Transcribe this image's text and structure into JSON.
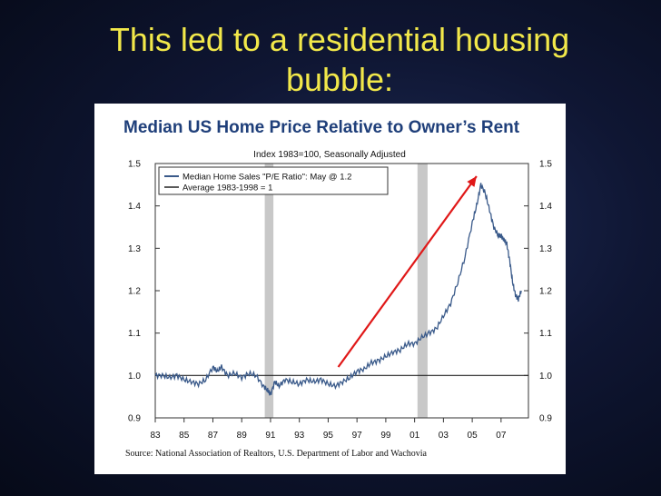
{
  "slide": {
    "title_line1": "This led to a residential housing",
    "title_line2": "bubble:"
  },
  "colors": {
    "title": "#f2e84a",
    "chart_title": "#1f3f7a",
    "series": "#3a5a8a",
    "average": "#222222",
    "recession_band": "#c8c8c8",
    "arrow": "#e01818"
  },
  "chart_data": {
    "type": "line",
    "title": "Median US Home Price Relative to Owner’s Rent",
    "subtitle": "Index 1983=100, Seasonally Adjusted",
    "source": "Source:   National Association of Realtors, U.S. Department of Labor and Wachovia",
    "xlim": [
      1983,
      2008.9
    ],
    "ylim": [
      0.9,
      1.5
    ],
    "x_tick_labels": [
      "83",
      "85",
      "87",
      "89",
      "91",
      "93",
      "95",
      "97",
      "99",
      "01",
      "03",
      "05",
      "07"
    ],
    "x_tick_years": [
      1983,
      1985,
      1987,
      1989,
      1991,
      1993,
      1995,
      1997,
      1999,
      2001,
      2003,
      2005,
      2007
    ],
    "y_ticks": [
      0.9,
      1.0,
      1.1,
      1.2,
      1.3,
      1.4,
      1.5
    ],
    "y_tick_labels": [
      "0.9",
      "1.0",
      "1.1",
      "1.2",
      "1.3",
      "1.4",
      "1.5"
    ],
    "recessions": [
      [
        1990.6,
        1991.2
      ],
      [
        2001.2,
        2001.9
      ]
    ],
    "arrow": {
      "from": [
        1995.7,
        1.02
      ],
      "to": [
        2005.3,
        1.47
      ]
    },
    "legend": {
      "position": "top-left",
      "entries": [
        "Median Home Sales \"P/E Ratio\": May @ 1.2",
        "Average 1983-1998 = 1"
      ]
    },
    "series": [
      {
        "name": "Median Home Sales \"P/E Ratio\": May @ 1.2",
        "x": [
          1983.0,
          1983.5,
          1984.0,
          1984.5,
          1985.0,
          1985.5,
          1986.0,
          1986.5,
          1987.0,
          1987.3,
          1987.6,
          1988.0,
          1988.5,
          1989.0,
          1989.5,
          1990.0,
          1990.5,
          1990.8,
          1991.0,
          1991.3,
          1991.6,
          1992.0,
          1992.5,
          1993.0,
          1993.5,
          1994.0,
          1994.5,
          1995.0,
          1995.5,
          1996.0,
          1996.5,
          1997.0,
          1997.5,
          1998.0,
          1998.5,
          1999.0,
          1999.5,
          2000.0,
          2000.5,
          2001.0,
          2001.5,
          2002.0,
          2002.5,
          2003.0,
          2003.5,
          2004.0,
          2004.5,
          2005.0,
          2005.3,
          2005.6,
          2005.9,
          2006.2,
          2006.5,
          2006.8,
          2007.0,
          2007.2,
          2007.4,
          2007.6,
          2007.8,
          2008.0,
          2008.2,
          2008.4
        ],
        "values": [
          1.0,
          1.0,
          0.995,
          1.0,
          0.99,
          0.985,
          0.98,
          0.99,
          1.02,
          1.01,
          1.02,
          1.0,
          1.005,
          0.995,
          1.005,
          1.0,
          0.975,
          0.965,
          0.955,
          0.985,
          0.975,
          0.99,
          0.985,
          0.98,
          0.99,
          0.985,
          0.99,
          0.98,
          0.975,
          0.985,
          0.995,
          1.01,
          1.015,
          1.03,
          1.035,
          1.045,
          1.055,
          1.06,
          1.075,
          1.075,
          1.09,
          1.1,
          1.11,
          1.14,
          1.17,
          1.22,
          1.28,
          1.36,
          1.4,
          1.45,
          1.43,
          1.39,
          1.35,
          1.33,
          1.33,
          1.32,
          1.31,
          1.27,
          1.22,
          1.19,
          1.18,
          1.2
        ]
      },
      {
        "name": "Average 1983-1998 = 1",
        "x": [
          1983.0,
          2008.9
        ],
        "values": [
          1.0,
          1.0
        ]
      }
    ]
  }
}
